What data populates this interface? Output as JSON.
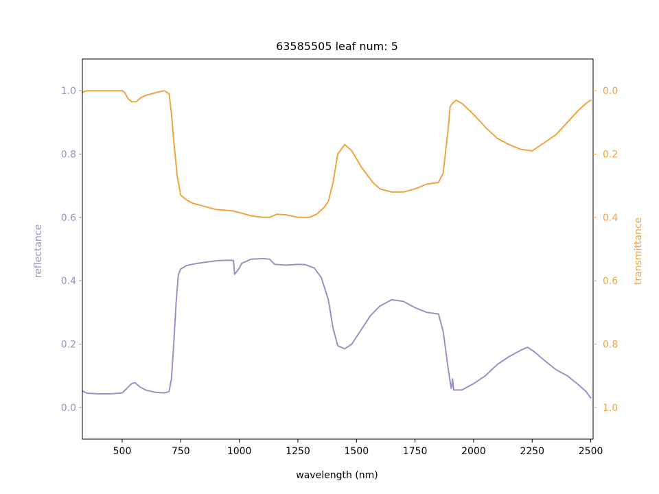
{
  "chart_data": {
    "type": "line",
    "title": "63585505 leaf num: 5",
    "xlabel": "wavelength (nm)",
    "x_ticks": [
      "500",
      "750",
      "1000",
      "1250",
      "1500",
      "1750",
      "2000",
      "2250",
      "2500"
    ],
    "xlim": [
      330,
      2510
    ],
    "grid": false,
    "legend": "none",
    "series": [
      {
        "name": "reflectance",
        "axis": "left",
        "color": "#9891c6",
        "ylabel": "reflectance",
        "ylim": [
          -0.1,
          1.1
        ],
        "y_ticks": [
          "0.0",
          "0.2",
          "0.4",
          "0.6",
          "0.8",
          "1.0"
        ],
        "points": [
          [
            330,
            0.052
          ],
          [
            350,
            0.045
          ],
          [
            400,
            0.043
          ],
          [
            450,
            0.043
          ],
          [
            500,
            0.046
          ],
          [
            520,
            0.06
          ],
          [
            540,
            0.075
          ],
          [
            555,
            0.078
          ],
          [
            575,
            0.065
          ],
          [
            600,
            0.055
          ],
          [
            640,
            0.048
          ],
          [
            680,
            0.046
          ],
          [
            700,
            0.05
          ],
          [
            710,
            0.09
          ],
          [
            720,
            0.2
          ],
          [
            730,
            0.33
          ],
          [
            740,
            0.42
          ],
          [
            750,
            0.437
          ],
          [
            775,
            0.448
          ],
          [
            800,
            0.452
          ],
          [
            850,
            0.458
          ],
          [
            900,
            0.463
          ],
          [
            950,
            0.465
          ],
          [
            975,
            0.464
          ],
          [
            980,
            0.42
          ],
          [
            1000,
            0.44
          ],
          [
            1010,
            0.455
          ],
          [
            1050,
            0.468
          ],
          [
            1100,
            0.47
          ],
          [
            1130,
            0.468
          ],
          [
            1150,
            0.452
          ],
          [
            1200,
            0.449
          ],
          [
            1250,
            0.452
          ],
          [
            1280,
            0.451
          ],
          [
            1320,
            0.44
          ],
          [
            1350,
            0.41
          ],
          [
            1380,
            0.34
          ],
          [
            1400,
            0.25
          ],
          [
            1420,
            0.195
          ],
          [
            1450,
            0.185
          ],
          [
            1480,
            0.2
          ],
          [
            1520,
            0.245
          ],
          [
            1560,
            0.29
          ],
          [
            1600,
            0.32
          ],
          [
            1650,
            0.34
          ],
          [
            1700,
            0.335
          ],
          [
            1750,
            0.315
          ],
          [
            1800,
            0.3
          ],
          [
            1850,
            0.295
          ],
          [
            1870,
            0.24
          ],
          [
            1890,
            0.13
          ],
          [
            1900,
            0.08
          ],
          [
            1905,
            0.06
          ],
          [
            1910,
            0.09
          ],
          [
            1915,
            0.055
          ],
          [
            1950,
            0.055
          ],
          [
            2000,
            0.075
          ],
          [
            2050,
            0.1
          ],
          [
            2100,
            0.135
          ],
          [
            2150,
            0.16
          ],
          [
            2200,
            0.18
          ],
          [
            2230,
            0.19
          ],
          [
            2260,
            0.175
          ],
          [
            2300,
            0.15
          ],
          [
            2350,
            0.12
          ],
          [
            2400,
            0.1
          ],
          [
            2450,
            0.07
          ],
          [
            2480,
            0.05
          ],
          [
            2500,
            0.03
          ]
        ]
      },
      {
        "name": "transmittance",
        "axis": "right",
        "color": "#f0a33e",
        "ylabel": "transmittance",
        "ylim": [
          1.1,
          -0.1
        ],
        "y_ticks": [
          "0.0",
          "0.2",
          "0.4",
          "0.6",
          "0.8",
          "1.0"
        ],
        "points": [
          [
            330,
            0.005
          ],
          [
            350,
            0.0
          ],
          [
            400,
            0.0
          ],
          [
            450,
            0.0
          ],
          [
            500,
            0.0
          ],
          [
            510,
            0.005
          ],
          [
            525,
            0.025
          ],
          [
            540,
            0.035
          ],
          [
            560,
            0.035
          ],
          [
            580,
            0.022
          ],
          [
            600,
            0.015
          ],
          [
            650,
            0.005
          ],
          [
            680,
            0.0
          ],
          [
            700,
            0.01
          ],
          [
            710,
            0.07
          ],
          [
            720,
            0.16
          ],
          [
            735,
            0.27
          ],
          [
            750,
            0.33
          ],
          [
            775,
            0.345
          ],
          [
            800,
            0.355
          ],
          [
            850,
            0.365
          ],
          [
            900,
            0.375
          ],
          [
            950,
            0.378
          ],
          [
            975,
            0.38
          ],
          [
            1000,
            0.385
          ],
          [
            1050,
            0.395
          ],
          [
            1100,
            0.4
          ],
          [
            1130,
            0.4
          ],
          [
            1160,
            0.39
          ],
          [
            1200,
            0.392
          ],
          [
            1250,
            0.4
          ],
          [
            1300,
            0.4
          ],
          [
            1330,
            0.39
          ],
          [
            1360,
            0.37
          ],
          [
            1380,
            0.35
          ],
          [
            1400,
            0.29
          ],
          [
            1420,
            0.2
          ],
          [
            1450,
            0.17
          ],
          [
            1480,
            0.19
          ],
          [
            1520,
            0.24
          ],
          [
            1570,
            0.29
          ],
          [
            1600,
            0.31
          ],
          [
            1650,
            0.32
          ],
          [
            1700,
            0.32
          ],
          [
            1750,
            0.31
          ],
          [
            1800,
            0.295
          ],
          [
            1850,
            0.29
          ],
          [
            1870,
            0.26
          ],
          [
            1890,
            0.13
          ],
          [
            1900,
            0.05
          ],
          [
            1910,
            0.04
          ],
          [
            1925,
            0.03
          ],
          [
            1950,
            0.04
          ],
          [
            2000,
            0.075
          ],
          [
            2050,
            0.115
          ],
          [
            2100,
            0.15
          ],
          [
            2150,
            0.17
          ],
          [
            2200,
            0.185
          ],
          [
            2250,
            0.19
          ],
          [
            2300,
            0.165
          ],
          [
            2350,
            0.14
          ],
          [
            2400,
            0.1
          ],
          [
            2450,
            0.06
          ],
          [
            2480,
            0.04
          ],
          [
            2500,
            0.03
          ]
        ]
      }
    ]
  }
}
